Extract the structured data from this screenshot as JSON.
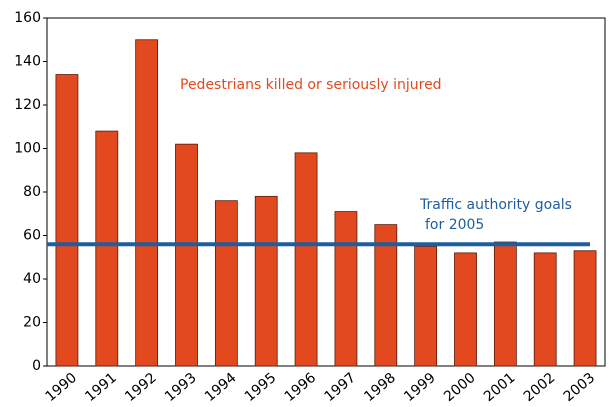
{
  "chart_data": {
    "type": "bar",
    "categories": [
      "1990",
      "1991",
      "1992",
      "1993",
      "1994",
      "1995",
      "1996",
      "1997",
      "1998",
      "1999",
      "2000",
      "2001",
      "2002",
      "2003"
    ],
    "values": [
      134,
      108,
      150,
      102,
      76,
      78,
      98,
      71,
      65,
      55,
      52,
      57,
      52,
      53
    ],
    "color": "#e2491e",
    "ylim": [
      0,
      160
    ],
    "yticks": [
      0,
      20,
      40,
      60,
      80,
      100,
      120,
      140,
      160
    ],
    "annotation": "Pedestrians killed or seriously injured",
    "goal": {
      "value": 56,
      "label": [
        "Traffic authority goals",
        "for 2005"
      ],
      "color": "#1f5e9e"
    }
  }
}
